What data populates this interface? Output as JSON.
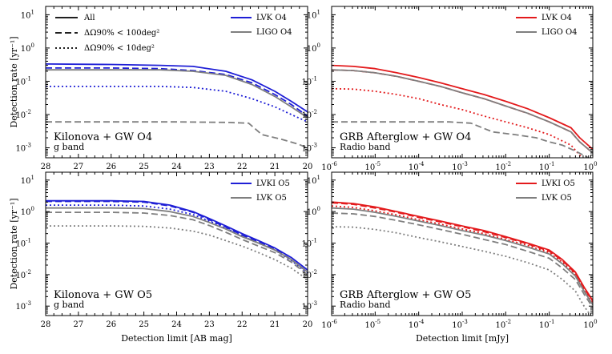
{
  "chart_data": [
    {
      "type": "line",
      "id": "kn-o4",
      "title": "Kilonova + GW O4",
      "subtitle": "g band",
      "xscale": "linear",
      "xlim": [
        28,
        20
      ],
      "xticks": [
        28,
        27,
        26,
        25,
        24,
        23,
        22,
        21,
        20
      ],
      "xticklabels": [
        "28",
        "27",
        "26",
        "25",
        "24",
        "23",
        "22",
        "21",
        "20"
      ],
      "xlabel": "",
      "yscale": "log",
      "ylim_exp": [
        -3.3,
        1.25
      ],
      "ylabel": "Detection rate [yr⁻¹]",
      "style_legend": [
        {
          "label": "All",
          "linestyle": "solid"
        },
        {
          "label": "ΔΩ90% < 100deg²",
          "linestyle": "dashed"
        },
        {
          "label": "ΔΩ90% < 10deg²",
          "linestyle": "dotted"
        }
      ],
      "legend": [
        {
          "label": "LVK O4",
          "color": "#1f1fd6"
        },
        {
          "label": "LIGO O4",
          "color": "#7f7f7f"
        }
      ],
      "series": [
        {
          "name": "LVK O4 All",
          "color": "#1f1fd6",
          "linestyle": "solid",
          "x": [
            28,
            26,
            24.5,
            23.5,
            22.5,
            21.7,
            21,
            20.5,
            20
          ],
          "y": [
            0.33,
            0.32,
            0.3,
            0.28,
            0.2,
            0.11,
            0.05,
            0.025,
            0.012
          ]
        },
        {
          "name": "LVK O4 <100deg²",
          "color": "#1f1fd6",
          "linestyle": "dashed",
          "x": [
            28,
            26,
            24.5,
            23.5,
            22.5,
            21.7,
            21,
            20.5,
            20
          ],
          "y": [
            0.25,
            0.25,
            0.24,
            0.21,
            0.16,
            0.09,
            0.04,
            0.02,
            0.009
          ]
        },
        {
          "name": "LVK O4 <10deg²",
          "color": "#1f1fd6",
          "linestyle": "dotted",
          "x": [
            28,
            26,
            24.5,
            23.5,
            22.5,
            21.7,
            21,
            20.5,
            20
          ],
          "y": [
            0.07,
            0.07,
            0.07,
            0.065,
            0.05,
            0.03,
            0.017,
            0.01,
            0.006
          ]
        },
        {
          "name": "LIGO O4 All",
          "color": "#7f7f7f",
          "linestyle": "solid",
          "x": [
            28,
            26,
            24.5,
            23.5,
            22.5,
            21.7,
            21,
            20.5,
            20
          ],
          "y": [
            0.22,
            0.22,
            0.22,
            0.2,
            0.15,
            0.08,
            0.035,
            0.017,
            0.008
          ]
        },
        {
          "name": "LIGO O4 <100deg²",
          "color": "#7f7f7f",
          "linestyle": "dashed",
          "x": [
            28,
            26,
            24,
            22.5,
            21.8,
            21.4,
            20.8,
            20.3,
            20
          ],
          "y": [
            0.006,
            0.006,
            0.006,
            0.0058,
            0.0055,
            0.0025,
            0.0018,
            0.0013,
            0.001
          ]
        }
      ]
    },
    {
      "type": "line",
      "id": "grb-o4",
      "title": "GRB Afterglow + GW O4",
      "subtitle": "Radio band",
      "xscale": "log",
      "xlim_exp": [
        -6,
        0
      ],
      "xticks_exp": [
        -6,
        -5,
        -4,
        -3,
        -2,
        -1,
        0
      ],
      "xlabel": "",
      "yscale": "log",
      "ylim_exp": [
        -3.3,
        1.25
      ],
      "ylabel": "",
      "legend": [
        {
          "label": "LVK O4",
          "color": "#e31a1c"
        },
        {
          "label": "LIGO O4",
          "color": "#7f7f7f"
        }
      ],
      "series": [
        {
          "name": "LVK O4 All",
          "color": "#e31a1c",
          "linestyle": "solid",
          "x_exp": [
            -6,
            -5.5,
            -5,
            -4.5,
            -4,
            -3.5,
            -3,
            -2.5,
            -2,
            -1.5,
            -1,
            -0.5,
            -0.3,
            0
          ],
          "y": [
            0.3,
            0.28,
            0.24,
            0.18,
            0.13,
            0.09,
            0.06,
            0.04,
            0.025,
            0.015,
            0.008,
            0.004,
            0.002,
            0.0009
          ]
        },
        {
          "name": "LVK O4 <100deg²",
          "color": "#e31a1c",
          "linestyle": "dashed",
          "x_exp": [
            -6,
            -5.5,
            -5,
            -4.5,
            -4,
            -3.5,
            -3,
            -2.5,
            -2,
            -1.5,
            -1,
            -0.5,
            -0.3,
            0
          ],
          "y": [
            0.22,
            0.21,
            0.18,
            0.14,
            0.1,
            0.07,
            0.045,
            0.03,
            0.018,
            0.011,
            0.006,
            0.003,
            0.0015,
            0.0007
          ]
        },
        {
          "name": "LVK O4 <10deg²",
          "color": "#e31a1c",
          "linestyle": "dotted",
          "x_exp": [
            -6,
            -5.5,
            -5,
            -4.5,
            -4,
            -3.5,
            -3,
            -2.5,
            -2,
            -1.5,
            -1,
            -0.5,
            -0.3,
            0
          ],
          "y": [
            0.06,
            0.058,
            0.05,
            0.04,
            0.03,
            0.02,
            0.014,
            0.009,
            0.006,
            0.004,
            0.0025,
            0.0012,
            0.0006,
            0.0003
          ]
        },
        {
          "name": "LIGO O4 All",
          "color": "#7f7f7f",
          "linestyle": "solid",
          "x_exp": [
            -6,
            -5.5,
            -5,
            -4.5,
            -4,
            -3.5,
            -3,
            -2.5,
            -2,
            -1.5,
            -1,
            -0.5,
            -0.3,
            0
          ],
          "y": [
            0.22,
            0.21,
            0.18,
            0.14,
            0.1,
            0.07,
            0.045,
            0.03,
            0.018,
            0.011,
            0.006,
            0.003,
            0.0015,
            0.0007
          ]
        },
        {
          "name": "LIGO O4 <100deg²",
          "color": "#7f7f7f",
          "linestyle": "dashed",
          "x_exp": [
            -6,
            -5,
            -4,
            -3.3,
            -2.8,
            -2.3,
            -1.8,
            -1.3,
            -1,
            -0.7,
            -0.4,
            -0.1
          ],
          "y": [
            0.006,
            0.006,
            0.006,
            0.006,
            0.0055,
            0.003,
            0.0025,
            0.002,
            0.0015,
            0.0012,
            0.0008,
            0.0005
          ]
        }
      ]
    },
    {
      "type": "line",
      "id": "kn-o5",
      "title": "Kilonova + GW O5",
      "subtitle": "g band",
      "xscale": "linear",
      "xlim": [
        28,
        20
      ],
      "xticks": [
        28,
        27,
        26,
        25,
        24,
        23,
        22,
        21,
        20
      ],
      "xticklabels": [
        "28",
        "27",
        "26",
        "25",
        "24",
        "23",
        "22",
        "21",
        "20"
      ],
      "xlabel": "Detection limit  [AB mag]",
      "yscale": "log",
      "ylim_exp": [
        -3.3,
        1.25
      ],
      "ylabel": "Detection rate [yr⁻¹]",
      "legend": [
        {
          "label": "LVKI O5",
          "color": "#1f1fd6"
        },
        {
          "label": "LVK O5",
          "color": "#7f7f7f"
        }
      ],
      "series": [
        {
          "name": "LVKI O5 All",
          "color": "#1f1fd6",
          "linestyle": "solid",
          "x": [
            28,
            26,
            25,
            24.2,
            23.5,
            23,
            22.5,
            22,
            21.5,
            21,
            20.5,
            20
          ],
          "y": [
            2.2,
            2.2,
            2.1,
            1.6,
            1.0,
            0.6,
            0.35,
            0.2,
            0.12,
            0.07,
            0.035,
            0.014
          ]
        },
        {
          "name": "LVKI O5 <100deg²",
          "color": "#1f1fd6",
          "linestyle": "dashed",
          "x": [
            28,
            26,
            25,
            24.2,
            23.5,
            23,
            22.5,
            22,
            21.5,
            21,
            20.5,
            20
          ],
          "y": [
            2.1,
            2.1,
            2.0,
            1.5,
            0.95,
            0.55,
            0.32,
            0.18,
            0.11,
            0.065,
            0.03,
            0.012
          ]
        },
        {
          "name": "LVKI O5 <10deg²",
          "color": "#1f1fd6",
          "linestyle": "dotted",
          "x": [
            28,
            26,
            25,
            24.2,
            23.5,
            23,
            22.5,
            22,
            21.5,
            21,
            20.5,
            20
          ],
          "y": [
            1.6,
            1.6,
            1.5,
            1.2,
            0.8,
            0.5,
            0.3,
            0.17,
            0.1,
            0.06,
            0.028,
            0.011
          ]
        },
        {
          "name": "LVK O5 All",
          "color": "#7f7f7f",
          "linestyle": "solid",
          "x": [
            28,
            26,
            25,
            24.2,
            23.5,
            23,
            22.5,
            22,
            21.5,
            21,
            20.5,
            20
          ],
          "y": [
            1.3,
            1.3,
            1.25,
            1.0,
            0.7,
            0.45,
            0.28,
            0.16,
            0.1,
            0.06,
            0.03,
            0.012
          ]
        },
        {
          "name": "LVK O5 <100deg²",
          "color": "#7f7f7f",
          "linestyle": "dashed",
          "x": [
            28,
            26,
            25,
            24.2,
            23.5,
            23,
            22.5,
            22,
            21.5,
            21,
            20.5,
            20
          ],
          "y": [
            0.95,
            0.95,
            0.9,
            0.75,
            0.55,
            0.36,
            0.22,
            0.13,
            0.08,
            0.05,
            0.025,
            0.01
          ]
        },
        {
          "name": "LVK O5 <10deg²",
          "color": "#7f7f7f",
          "linestyle": "dotted",
          "x": [
            28,
            26,
            25,
            24.2,
            23.5,
            23,
            22.5,
            22,
            21.5,
            21,
            20.5,
            20
          ],
          "y": [
            0.35,
            0.35,
            0.34,
            0.3,
            0.24,
            0.18,
            0.12,
            0.08,
            0.05,
            0.03,
            0.016,
            0.007
          ]
        }
      ]
    },
    {
      "type": "line",
      "id": "grb-o5",
      "title": "GRB Afterglow + GW O5",
      "subtitle": "Radio band",
      "xscale": "log",
      "xlim_exp": [
        -6,
        0
      ],
      "xticks_exp": [
        -6,
        -5,
        -4,
        -3,
        -2,
        -1,
        0
      ],
      "xlabel": "Detection limit  [mJy]",
      "yscale": "log",
      "ylim_exp": [
        -3.3,
        1.25
      ],
      "ylabel": "",
      "legend": [
        {
          "label": "LVKI O5",
          "color": "#e31a1c"
        },
        {
          "label": "LVK O5",
          "color": "#7f7f7f"
        }
      ],
      "series": [
        {
          "name": "LVKI O5 All",
          "color": "#e31a1c",
          "linestyle": "solid",
          "x_exp": [
            -6,
            -5.5,
            -5,
            -4.5,
            -4,
            -3.5,
            -3,
            -2.5,
            -2,
            -1.5,
            -1,
            -0.7,
            -0.4,
            -0.2,
            0
          ],
          "y": [
            2.0,
            1.8,
            1.4,
            1.0,
            0.7,
            0.5,
            0.35,
            0.25,
            0.16,
            0.1,
            0.06,
            0.03,
            0.012,
            0.004,
            0.0015
          ]
        },
        {
          "name": "LVKI O5 <100deg²",
          "color": "#e31a1c",
          "linestyle": "dashed",
          "x_exp": [
            -6,
            -5.5,
            -5,
            -4.5,
            -4,
            -3.5,
            -3,
            -2.5,
            -2,
            -1.5,
            -1,
            -0.7,
            -0.4,
            -0.2,
            0
          ],
          "y": [
            1.9,
            1.7,
            1.3,
            0.95,
            0.65,
            0.47,
            0.33,
            0.23,
            0.15,
            0.095,
            0.055,
            0.028,
            0.011,
            0.0037,
            0.0014
          ]
        },
        {
          "name": "LVKI O5 <10deg²",
          "color": "#e31a1c",
          "linestyle": "dotted",
          "x_exp": [
            -6,
            -5.5,
            -5,
            -4.5,
            -4,
            -3.5,
            -3,
            -2.5,
            -2,
            -1.5,
            -1,
            -0.7,
            -0.4,
            -0.2,
            0
          ],
          "y": [
            1.5,
            1.35,
            1.05,
            0.78,
            0.55,
            0.4,
            0.28,
            0.2,
            0.13,
            0.085,
            0.05,
            0.025,
            0.01,
            0.0033,
            0.0012
          ]
        },
        {
          "name": "LVK O5 All",
          "color": "#7f7f7f",
          "linestyle": "solid",
          "x_exp": [
            -6,
            -5.5,
            -5,
            -4.5,
            -4,
            -3.5,
            -3,
            -2.5,
            -2,
            -1.5,
            -1,
            -0.7,
            -0.4,
            -0.2,
            0
          ],
          "y": [
            1.3,
            1.2,
            0.95,
            0.7,
            0.5,
            0.36,
            0.25,
            0.18,
            0.12,
            0.075,
            0.045,
            0.022,
            0.009,
            0.003,
            0.0011
          ]
        },
        {
          "name": "LVK O5 <100deg²",
          "color": "#7f7f7f",
          "linestyle": "dashed",
          "x_exp": [
            -6,
            -5.5,
            -5,
            -4.5,
            -4,
            -3.5,
            -3,
            -2.5,
            -2,
            -1.5,
            -1,
            -0.7,
            -0.4,
            -0.2,
            0
          ],
          "y": [
            0.9,
            0.85,
            0.7,
            0.52,
            0.38,
            0.27,
            0.19,
            0.13,
            0.09,
            0.055,
            0.033,
            0.016,
            0.007,
            0.0024,
            0.0009
          ]
        },
        {
          "name": "LVK O5 <10deg²",
          "color": "#7f7f7f",
          "linestyle": "dotted",
          "x_exp": [
            -6,
            -5.5,
            -5,
            -4.5,
            -4,
            -3.5,
            -3,
            -2.5,
            -2,
            -1.5,
            -1,
            -0.7,
            -0.4,
            -0.2,
            0
          ],
          "y": [
            0.33,
            0.32,
            0.27,
            0.21,
            0.15,
            0.11,
            0.078,
            0.055,
            0.038,
            0.024,
            0.014,
            0.007,
            0.003,
            0.001,
            0.0004
          ]
        }
      ]
    }
  ]
}
